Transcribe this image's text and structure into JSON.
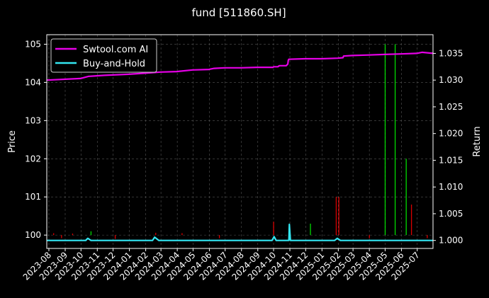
{
  "chart_data": {
    "type": "line",
    "title": "fund [511860.SH]",
    "ylabel_left": "Price",
    "ylabel_right": "Return",
    "xlabel": "",
    "grid": true,
    "legend_position": "top-left",
    "x_ticks": [
      "2023-08",
      "2023-09",
      "2023-10",
      "2023-11",
      "2023-12",
      "2024-01",
      "2024-02",
      "2024-03",
      "2024-04",
      "2024-05",
      "2024-06",
      "2024-07",
      "2024-08",
      "2024-09",
      "2024-10",
      "2024-11",
      "2024-12",
      "2025-01",
      "2025-02",
      "2025-03",
      "2025-04",
      "2025-05",
      "2025-06",
      "2025-07"
    ],
    "y_left_ticks": [
      "100",
      "101",
      "102",
      "103",
      "104",
      "105"
    ],
    "y_right_ticks": [
      "1.000",
      "1.005",
      "1.010",
      "1.015",
      "1.020",
      "1.025",
      "1.030",
      "1.035"
    ],
    "y_left_range": [
      99.65,
      105.25
    ],
    "y_right_range": [
      0.9985,
      1.0385
    ],
    "x_range": [
      "2023-07-28",
      "2025-07-31"
    ],
    "series": [
      {
        "name": "Swtool.com AI",
        "color": "#e600e6",
        "axis": "right",
        "x": [
          "2023-07-28",
          "2023-09-30",
          "2023-10-15",
          "2023-11-15",
          "2023-12-31",
          "2024-01-31",
          "2024-02-29",
          "2024-03-31",
          "2024-04-30",
          "2024-05-31",
          "2024-06-10",
          "2024-06-30",
          "2024-07-31",
          "2024-08-31",
          "2024-09-30",
          "2024-10-01",
          "2024-10-09",
          "2024-10-12",
          "2024-10-25",
          "2024-10-28",
          "2024-10-29",
          "2024-10-30",
          "2024-11-30",
          "2024-12-31",
          "2025-01-31",
          "2025-02-10",
          "2025-02-11",
          "2025-02-28",
          "2025-03-31",
          "2025-04-30",
          "2025-05-31",
          "2025-06-30",
          "2025-07-10",
          "2025-07-31"
        ],
        "y": [
          1.03,
          1.0303,
          1.0307,
          1.0309,
          1.0311,
          1.0313,
          1.0315,
          1.0316,
          1.0319,
          1.032,
          1.0322,
          1.0323,
          1.0323,
          1.0324,
          1.0324,
          1.0325,
          1.0325,
          1.0327,
          1.0327,
          1.033,
          1.0337,
          1.0339,
          1.034,
          1.034,
          1.0341,
          1.0342,
          1.0345,
          1.0346,
          1.0347,
          1.0348,
          1.0349,
          1.035,
          1.0352,
          1.035
        ]
      },
      {
        "name": "Buy-and-Hold",
        "color": "#33e6f2",
        "axis": "right",
        "x": [
          "2023-07-28",
          "2023-10-10",
          "2023-10-14",
          "2023-10-20",
          "2024-01-31",
          "2024-02-14",
          "2024-02-18",
          "2024-02-26",
          "2024-09-28",
          "2024-10-02",
          "2024-10-06",
          "2024-10-30",
          "2024-10-31",
          "2024-11-02",
          "2024-11-06",
          "2025-01-25",
          "2025-01-30",
          "2025-02-05",
          "2025-07-31"
        ],
        "y": [
          1.0,
          1.0,
          1.0004,
          1.0,
          1.0,
          1.0,
          1.0006,
          1.0,
          1.0,
          1.0007,
          1.0,
          1.0,
          1.003,
          1.0,
          1.0,
          1.0,
          1.0004,
          1.0,
          1.0
        ]
      }
    ],
    "volume_bars": [
      {
        "date": "2023-08-10",
        "value": 100.05,
        "color": "#ff0000"
      },
      {
        "date": "2023-08-25",
        "value": 99.92,
        "color": "#ff0000"
      },
      {
        "date": "2023-09-15",
        "value": 100.04,
        "color": "#ff0000"
      },
      {
        "date": "2023-10-20",
        "value": 100.1,
        "color": "#00ff00"
      },
      {
        "date": "2023-12-05",
        "value": 99.9,
        "color": "#ff0000"
      },
      {
        "date": "2024-02-20",
        "value": 100.06,
        "color": "#ff0000"
      },
      {
        "date": "2024-04-10",
        "value": 100.05,
        "color": "#ff0000"
      },
      {
        "date": "2024-06-20",
        "value": 99.92,
        "color": "#ff0000"
      },
      {
        "date": "2024-10-01",
        "value": 100.35,
        "color": "#ff0000"
      },
      {
        "date": "2024-10-31",
        "value": 100.3,
        "color": "#00ff00"
      },
      {
        "date": "2024-12-10",
        "value": 100.3,
        "color": "#00ff00"
      },
      {
        "date": "2025-01-28",
        "value": 101.0,
        "color": "#ff0000"
      },
      {
        "date": "2025-02-02",
        "value": 101.0,
        "color": "#ff0000"
      },
      {
        "date": "2025-04-01",
        "value": 99.92,
        "color": "#ff0000"
      },
      {
        "date": "2025-05-01",
        "value": 105.0,
        "color": "#00ff00"
      },
      {
        "date": "2025-05-20",
        "value": 105.0,
        "color": "#00ff00"
      },
      {
        "date": "2025-06-10",
        "value": 102.0,
        "color": "#00ff00"
      },
      {
        "date": "2025-06-20",
        "value": 100.8,
        "color": "#ff0000"
      },
      {
        "date": "2025-07-20",
        "value": 99.92,
        "color": "#ff0000"
      }
    ]
  }
}
